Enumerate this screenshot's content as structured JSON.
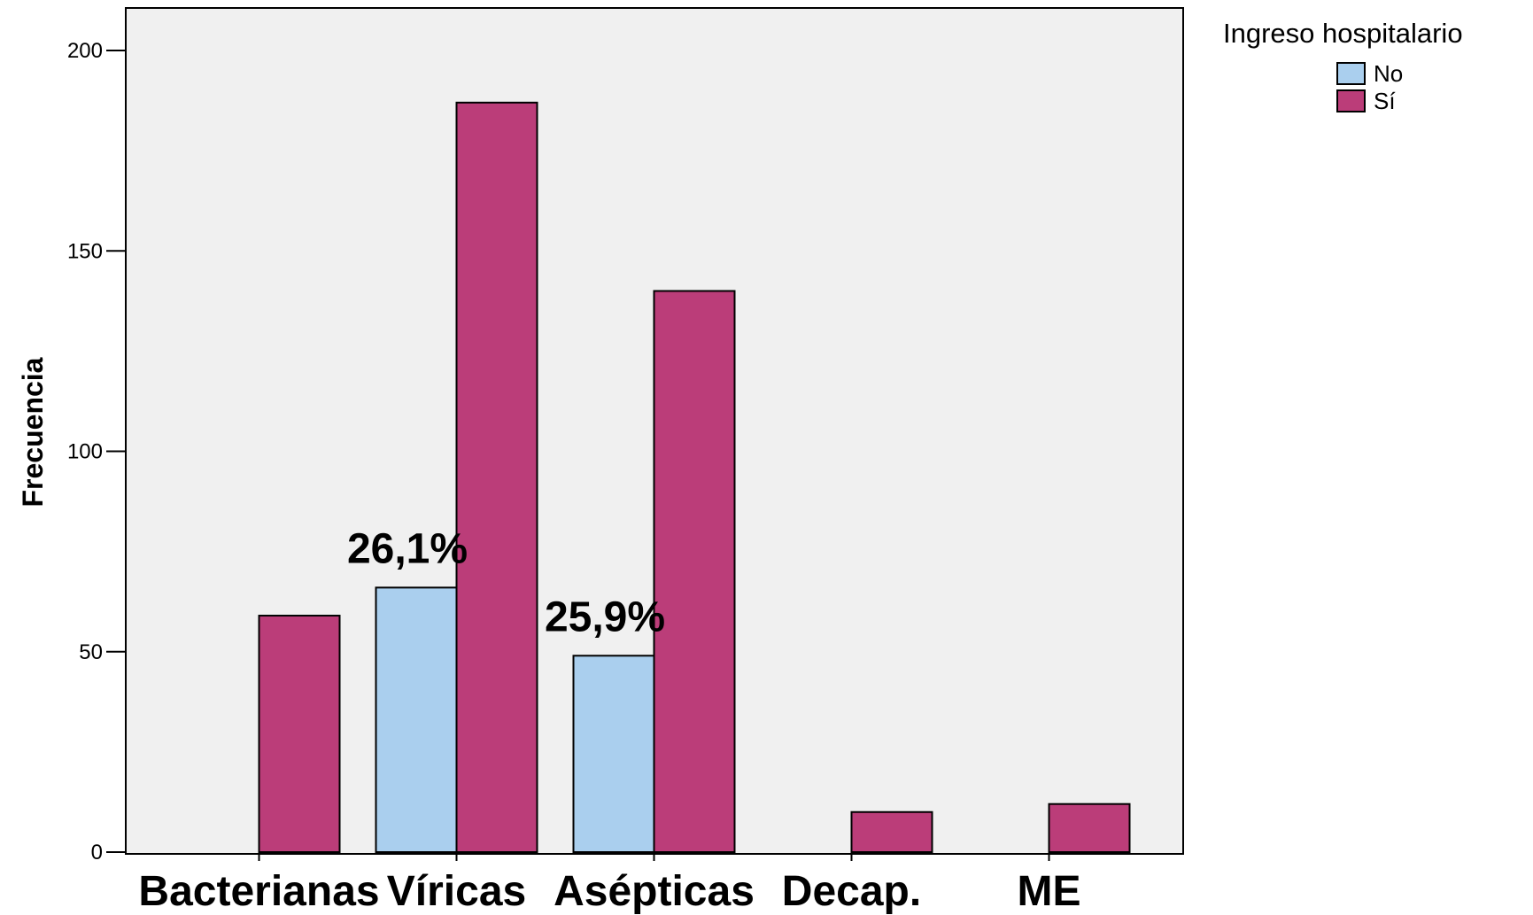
{
  "chart_data": {
    "type": "bar",
    "ylabel": "Frecuencia",
    "xlabel": "",
    "ylim": [
      0,
      210
    ],
    "yticks": [
      0,
      50,
      100,
      150,
      200
    ],
    "categories": [
      "Bacterianas",
      "Víricas",
      "Asépticas",
      "Decap.",
      "ME"
    ],
    "series": [
      {
        "name": "No",
        "color": "#aacfee",
        "values": [
          null,
          66,
          49,
          null,
          null
        ]
      },
      {
        "name": "Sí",
        "color": "#bb3d79",
        "values": [
          59,
          187,
          140,
          10,
          12
        ]
      }
    ],
    "legend": {
      "title": "Ingreso hospitalario",
      "position": "top-right"
    },
    "annotations": [
      {
        "category": "Víricas",
        "text": "26,1%"
      },
      {
        "category": "Asépticas",
        "text": "25,9%"
      }
    ],
    "plot_background": "#f0f0f0",
    "grid": false
  }
}
